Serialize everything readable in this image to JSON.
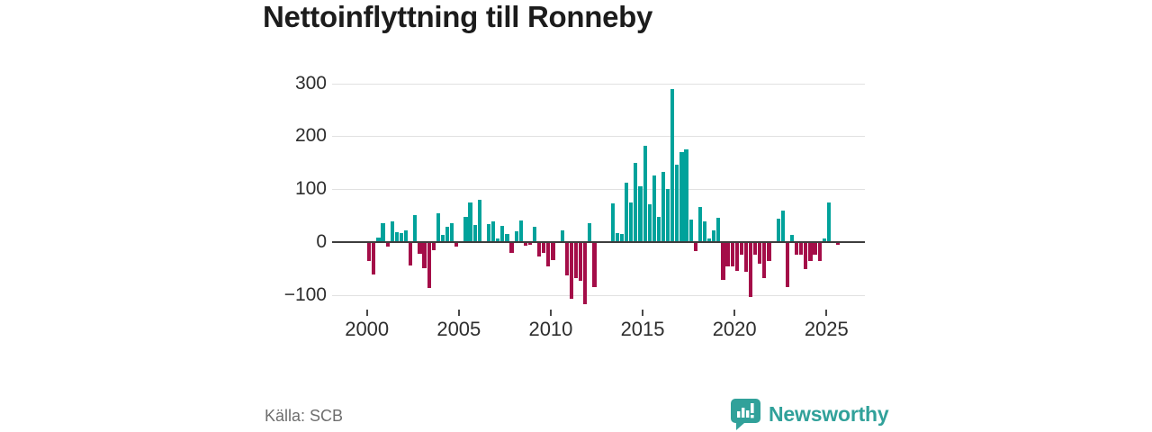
{
  "title": "Nettoinflyttning till Ronneby",
  "source": "Källa: SCB",
  "branding": {
    "name": "Newsworthy",
    "color": "#31a19a"
  },
  "chart_data": {
    "type": "bar",
    "title": "Nettoinflyttning till Ronneby",
    "frequency": "quarterly",
    "start": "2000 Q1",
    "end": "2025 Q3",
    "series": [
      {
        "year": 2000,
        "q": [
          -36,
          -62,
          9,
          35
        ]
      },
      {
        "year": 2001,
        "q": [
          -9,
          38,
          19,
          17
        ]
      },
      {
        "year": 2002,
        "q": [
          21,
          -45,
          50,
          -23
        ]
      },
      {
        "year": 2003,
        "q": [
          -50,
          -87,
          -16,
          54
        ]
      },
      {
        "year": 2004,
        "q": [
          13,
          29,
          35,
          -9
        ]
      },
      {
        "year": 2005,
        "q": [
          0,
          48,
          75,
          32
        ]
      },
      {
        "year": 2006,
        "q": [
          80,
          0,
          34,
          38
        ]
      },
      {
        "year": 2007,
        "q": [
          7,
          31,
          15,
          -21
        ]
      },
      {
        "year": 2008,
        "q": [
          20,
          40,
          -7,
          -5
        ]
      },
      {
        "year": 2009,
        "q": [
          28,
          -28,
          -21,
          -46
        ]
      },
      {
        "year": 2010,
        "q": [
          -35,
          0,
          21,
          -64
        ]
      },
      {
        "year": 2011,
        "q": [
          -108,
          -68,
          -74,
          -117
        ]
      },
      {
        "year": 2012,
        "q": [
          35,
          -85,
          0,
          0
        ]
      },
      {
        "year": 2013,
        "q": [
          0,
          73,
          16,
          15
        ]
      },
      {
        "year": 2014,
        "q": [
          112,
          74,
          149,
          106
        ]
      },
      {
        "year": 2015,
        "q": [
          182,
          71,
          126,
          48
        ]
      },
      {
        "year": 2016,
        "q": [
          132,
          100,
          289,
          146
        ]
      },
      {
        "year": 2017,
        "q": [
          170,
          175,
          43,
          -18
        ]
      },
      {
        "year": 2018,
        "q": [
          66,
          39,
          6,
          21
        ]
      },
      {
        "year": 2019,
        "q": [
          46,
          -71,
          -47,
          -47
        ]
      },
      {
        "year": 2020,
        "q": [
          -55,
          -25,
          -57,
          -105
        ]
      },
      {
        "year": 2021,
        "q": [
          -25,
          -41,
          -69,
          -36
        ]
      },
      {
        "year": 2022,
        "q": [
          0,
          44,
          59,
          -86
        ]
      },
      {
        "year": 2023,
        "q": [
          13,
          -24,
          -25,
          -52
        ]
      },
      {
        "year": 2024,
        "q": [
          -36,
          -25,
          -36,
          7
        ]
      },
      {
        "year": 2025,
        "q": [
          75,
          0,
          -6
        ]
      }
    ],
    "x_tick_years": [
      2000,
      2005,
      2010,
      2015,
      2020,
      2025
    ],
    "x_tick_labels": [
      "2000",
      "2005",
      "2010",
      "2015",
      "2020",
      "2025"
    ],
    "y_ticks": [
      300,
      200,
      100,
      0,
      -100
    ],
    "y_tick_labels": [
      "300",
      "200",
      "100",
      "0",
      "−100"
    ],
    "ylim": [
      -125,
      310
    ],
    "grid": "horizontal",
    "legend": "none",
    "positive_color": "#00a29b",
    "negative_color": "#a40d48"
  }
}
